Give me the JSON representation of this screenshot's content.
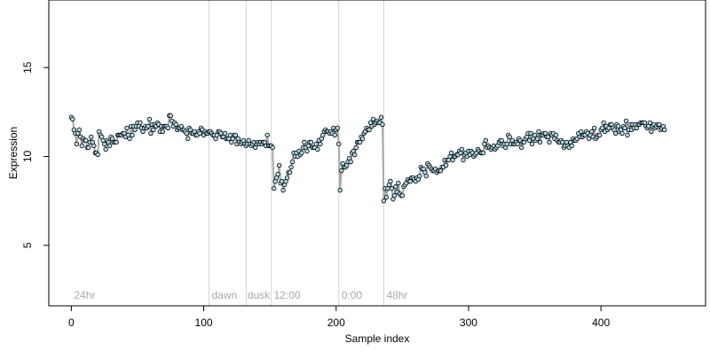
{
  "chart_data": {
    "type": "scatter",
    "title": "",
    "xlabel": "Sample index",
    "ylabel": "Expression",
    "xlim": [
      -17,
      479
    ],
    "ylim": [
      1.6,
      18.8
    ],
    "x_ticks": [
      0,
      100,
      200,
      300,
      400
    ],
    "y_ticks": [
      5,
      10,
      15
    ],
    "grid": false,
    "legend": "none",
    "colors": {
      "point_fill": "#add8e6",
      "point_stroke": "#000000",
      "trend_line": "#a9a9a9",
      "residual_positive": "#ffa500",
      "residual_negative": "#6495ed",
      "vline": "#d3d3d3",
      "annotation_text": "#a9a9a9"
    },
    "vlines": [
      104,
      132,
      151,
      202,
      236
    ],
    "annotations": [
      {
        "x": 2,
        "y": 2,
        "text": "24hr"
      },
      {
        "x": 106,
        "y": 2,
        "text": "dawn"
      },
      {
        "x": 133,
        "y": 2,
        "text": "dusk"
      },
      {
        "x": 153,
        "y": 2,
        "text": "12:00"
      },
      {
        "x": 204,
        "y": 2,
        "text": "0:00"
      },
      {
        "x": 238,
        "y": 2,
        "text": "48hr"
      }
    ],
    "series": [
      {
        "values": [
          12.2,
          12.1,
          11.5,
          11.3,
          10.7,
          11.3,
          11.5,
          11.1,
          10.6,
          11.0,
          10.9,
          10.9,
          10.5,
          10.5,
          10.8,
          11.1,
          10.8,
          10.6,
          10.2,
          10.2,
          10.1,
          11.4,
          11.2,
          11.1,
          10.9,
          10.7,
          10.4,
          10.9,
          10.8,
          10.6,
          11.1,
          11.0,
          10.8,
          10.8,
          10.8,
          11.2,
          11.2,
          11.2,
          11.2,
          11.3,
          11.3,
          11.1,
          11.6,
          11.2,
          11.0,
          11.7,
          11.2,
          11.7,
          11.5,
          11.7,
          11.9,
          11.7,
          11.9,
          11.6,
          11.4,
          11.6,
          11.7,
          11.6,
          11.7,
          12.1,
          11.3,
          11.8,
          11.5,
          11.8,
          11.7,
          11.9,
          11.8,
          11.4,
          11.7,
          11.4,
          11.7,
          11.7,
          11.7,
          11.6,
          12.3,
          12.3,
          12.0,
          11.7,
          11.9,
          11.8,
          11.5,
          11.6,
          11.6,
          11.7,
          11.5,
          11.5,
          11.4,
          11.3,
          11.0,
          11.6,
          11.5,
          11.3,
          11.3,
          11.4,
          11.2,
          11.2,
          11.4,
          11.3,
          11.6,
          11.5,
          11.2,
          11.4,
          11.3,
          11.3,
          11.4,
          11.4,
          11.3,
          11.2,
          11.2,
          11.0,
          11.2,
          11.4,
          11.4,
          11.3,
          11.1,
          11.1,
          11.3,
          11.0,
          11.0,
          11.0,
          11.2,
          10.8,
          11.0,
          11.2,
          11.2,
          10.7,
          11.0,
          10.8,
          10.7,
          10.8,
          10.9,
          10.7,
          10.6,
          10.7,
          10.9,
          10.7,
          10.6,
          10.7,
          10.8,
          10.5,
          10.7,
          10.8,
          10.7,
          10.8,
          10.7,
          10.8,
          10.8,
          10.6,
          11.2,
          10.6,
          10.6,
          10.6,
          10.5,
          8.2,
          8.6,
          8.8,
          9.0,
          9.5,
          8.5,
          8.6,
          8.1,
          8.4,
          8.6,
          8.8,
          9.1,
          9.1,
          9.4,
          9.7,
          10.2,
          10.0,
          10.2,
          10.0,
          10.3,
          10.1,
          10.2,
          10.5,
          10.8,
          10.5,
          10.3,
          10.6,
          10.8,
          10.8,
          10.5,
          10.5,
          10.5,
          10.7,
          10.4,
          10.9,
          10.7,
          11.0,
          11.2,
          11.4,
          11.5,
          11.4,
          11.4,
          11.3,
          11.4,
          11.3,
          11.6,
          11.2,
          11.5,
          11.6,
          10.7,
          8.1,
          9.2,
          9.6,
          9.4,
          9.4,
          9.5,
          9.7,
          9.9,
          9.7,
          10.2,
          10.3,
          10.1,
          10.5,
          10.8,
          10.8,
          10.8,
          11.1,
          11.0,
          11.3,
          11.4,
          11.6,
          11.5,
          11.5,
          11.9,
          11.7,
          12.1,
          11.8,
          11.9,
          12.0,
          11.9,
          11.9,
          12.2,
          11.8,
          7.5,
          8.2,
          7.7,
          8.2,
          8.4,
          8.6,
          8.2,
          7.6,
          7.8,
          8.3,
          8.0,
          8.5,
          7.9,
          7.8,
          7.8,
          8.3,
          8.4,
          8.5,
          8.7,
          8.6,
          8.6,
          8.8,
          8.8,
          8.7,
          8.6,
          8.8,
          8.7,
          8.9,
          9.4,
          9.3,
          9.3,
          9.1,
          8.9,
          9.6,
          9.5,
          9.4,
          9.3,
          9.2,
          9.2,
          9.3,
          9.1,
          9.2,
          9.2,
          9.2,
          9.4,
          9.4,
          9.8,
          9.5,
          9.8,
          9.8,
          10.0,
          10.2,
          9.8,
          10.0,
          10.0,
          10.1,
          10.1,
          10.3,
          10.2,
          10.4,
          9.8,
          10.1,
          10.2,
          10.0,
          10.3,
          10.1,
          10.3,
          10.2,
          10.0,
          10.1,
          10.2,
          10.4,
          10.3,
          10.2,
          10.2,
          10.2,
          10.7,
          10.9,
          10.5,
          10.6,
          10.5,
          10.4,
          10.5,
          10.6,
          10.4,
          10.5,
          10.6,
          10.8,
          10.9,
          10.9,
          10.6,
          10.7,
          10.5,
          10.7,
          11.2,
          11.1,
          10.7,
          10.9,
          10.7,
          10.7,
          10.8,
          10.7,
          11.0,
          10.9,
          10.5,
          10.8,
          10.8,
          11.0,
          11.1,
          11.3,
          10.9,
          11.3,
          10.7,
          11.0,
          11.2,
          10.9,
          11.0,
          11.4,
          10.8,
          11.2,
          11.2,
          11.3,
          11.3,
          11.1,
          11.1,
          10.8,
          11.3,
          11.2,
          11.3,
          11.0,
          11.2,
          10.9,
          10.8,
          10.8,
          10.9,
          10.8,
          10.5,
          10.6,
          10.8,
          10.6,
          10.5,
          10.8,
          10.6,
          11.0,
          10.9,
          10.9,
          11.0,
          11.3,
          11.1,
          11.4,
          11.1,
          11.2,
          11.2,
          11.4,
          11.3,
          11.0,
          11.2,
          11.4,
          11.1,
          11.6,
          11.0,
          11.1,
          11.2,
          11.2,
          11.5,
          11.6,
          11.9,
          11.4,
          11.7,
          11.5,
          11.6,
          11.8,
          11.8,
          11.6,
          11.5,
          11.3,
          11.8,
          11.7,
          11.4,
          11.5,
          11.3,
          11.7,
          11.6,
          12.0,
          11.2,
          11.5,
          11.8,
          11.5,
          11.8,
          11.6,
          11.8,
          11.6,
          11.8,
          11.8,
          11.9,
          11.9,
          11.9,
          11.9,
          11.7,
          11.6,
          11.7,
          11.9,
          11.4,
          11.7,
          11.8,
          11.6,
          11.7,
          11.8,
          11.8,
          11.5,
          11.6,
          11.7,
          11.5
        ],
        "trend": [
          12.2,
          12.1,
          11.5,
          11.3,
          10.7,
          11.3,
          11.5,
          11.1,
          10.6,
          11.0,
          10.9,
          10.9,
          10.5,
          10.5,
          10.8,
          11.1,
          10.8,
          10.6,
          10.2,
          10.2,
          10.1,
          11.4,
          11.2,
          11.1,
          10.9,
          10.7,
          10.4,
          10.9,
          10.8,
          10.6,
          11.1,
          11.0,
          10.8,
          10.8,
          10.8,
          11.2,
          11.2,
          11.2,
          11.2,
          11.3,
          11.3,
          11.1,
          11.6,
          11.2,
          11.0,
          11.7,
          11.2,
          11.7,
          11.5,
          11.7,
          11.9,
          11.7,
          11.9,
          11.6,
          11.4,
          11.6,
          11.7,
          11.6,
          11.7,
          12.1,
          11.3,
          11.8,
          11.5,
          11.8,
          11.7,
          11.9,
          11.8,
          11.4,
          11.7,
          11.4,
          11.7,
          11.7,
          11.7,
          11.6,
          12.3,
          12.3,
          12.0,
          11.7,
          11.9,
          11.8,
          11.5,
          11.6,
          11.6,
          11.7,
          11.5,
          11.5,
          11.4,
          11.3,
          11.0,
          11.6,
          11.5,
          11.3,
          11.3,
          11.4,
          11.2,
          11.2,
          11.4,
          11.3,
          11.6,
          11.5,
          11.2,
          11.4,
          11.3,
          11.3,
          11.4,
          11.4,
          11.3,
          11.2,
          11.2,
          11.0,
          11.2,
          11.4,
          11.4,
          11.3,
          11.1,
          11.1,
          11.3,
          11.0,
          11.0,
          11.0,
          11.2,
          10.8,
          11.0,
          11.2,
          11.2,
          10.7,
          11.0,
          10.8,
          10.7,
          10.8,
          10.9,
          10.7,
          10.6,
          10.7,
          10.9,
          10.7,
          10.6,
          10.7,
          10.8,
          10.5,
          10.7,
          10.8,
          10.7,
          10.8,
          10.7,
          10.8,
          10.8,
          10.6,
          11.2,
          10.6,
          10.6,
          10.6,
          10.5,
          8.2,
          8.6,
          8.8,
          9.0,
          9.5,
          8.5,
          8.6,
          8.1,
          8.4,
          8.6,
          8.8,
          9.1,
          9.1,
          9.4,
          9.7,
          10.2,
          10.0,
          10.2,
          10.0,
          10.3,
          10.1,
          10.2,
          10.5,
          10.8,
          10.5,
          10.3,
          10.6,
          10.8,
          10.8,
          10.5,
          10.5,
          10.5,
          10.7,
          10.4,
          10.9,
          10.7,
          11.0,
          11.2,
          11.4,
          11.5,
          11.4,
          11.4,
          11.3,
          11.4,
          11.3,
          11.6,
          11.2,
          11.5,
          11.6,
          10.7,
          8.1,
          9.2,
          9.6,
          9.4,
          9.4,
          9.5,
          9.7,
          9.9,
          9.7,
          10.2,
          10.3,
          10.1,
          10.5,
          10.8,
          10.8,
          10.8,
          11.1,
          11.0,
          11.3,
          11.4,
          11.6,
          11.5,
          11.5,
          11.9,
          11.7,
          12.1,
          11.8,
          11.9,
          12.0,
          11.9,
          11.9,
          12.2,
          11.8,
          7.5,
          8.2,
          7.7,
          8.2,
          8.4,
          8.6,
          8.2,
          7.6,
          7.8,
          8.3,
          8.0,
          8.5,
          7.9,
          7.8,
          7.8,
          8.3,
          8.4,
          8.5,
          8.7,
          8.6,
          8.6,
          8.8,
          8.8,
          8.7,
          8.6,
          8.8,
          8.7,
          8.9,
          9.4,
          9.3,
          9.3,
          9.1,
          8.9,
          9.6,
          9.5,
          9.4,
          9.3,
          9.2,
          9.2,
          9.3,
          9.1,
          9.2,
          9.2,
          9.2,
          9.4,
          9.4,
          9.8,
          9.5,
          9.8,
          9.8,
          10.0,
          10.2,
          9.8,
          10.0,
          10.0,
          10.1,
          10.1,
          10.3,
          10.2,
          10.4,
          9.8,
          10.1,
          10.2,
          10.0,
          10.3,
          10.1,
          10.3,
          10.2,
          10.0,
          10.1,
          10.2,
          10.4,
          10.3,
          10.2,
          10.2,
          10.2,
          10.7,
          10.9,
          10.5,
          10.6,
          10.5,
          10.4,
          10.5,
          10.6,
          10.4,
          10.5,
          10.6,
          10.8,
          10.9,
          10.9,
          10.6,
          10.7,
          10.5,
          10.7,
          11.2,
          11.1,
          10.7,
          10.9,
          10.7,
          10.7,
          10.8,
          10.7,
          11.0,
          10.9,
          10.5,
          10.8,
          10.8,
          11.0,
          11.1,
          11.3,
          10.9,
          11.3,
          10.7,
          11.0,
          11.2,
          10.9,
          11.0,
          11.4,
          10.8,
          11.2,
          11.2,
          11.3,
          11.3,
          11.1,
          11.1,
          10.8,
          11.3,
          11.2,
          11.3,
          11.0,
          11.2,
          10.9,
          10.8,
          10.8,
          10.9,
          10.8,
          10.5,
          10.6,
          10.8,
          10.6,
          10.5,
          10.8,
          10.6,
          11.0,
          10.9,
          10.9,
          11.0,
          11.3,
          11.1,
          11.4,
          11.1,
          11.2,
          11.2,
          11.4,
          11.3,
          11.0,
          11.2,
          11.4,
          11.1,
          11.6,
          11.0,
          11.1,
          11.2,
          11.2,
          11.5,
          11.6,
          11.9,
          11.4,
          11.7,
          11.5,
          11.6,
          11.8,
          11.8,
          11.6,
          11.5,
          11.3,
          11.8,
          11.7,
          11.4,
          11.5,
          11.3,
          11.7,
          11.6,
          12.0,
          11.2,
          11.5,
          11.8,
          11.5,
          11.8,
          11.6,
          11.8,
          11.6,
          11.8,
          11.8,
          11.9,
          11.9,
          11.9,
          11.9,
          11.7,
          11.6,
          11.7,
          11.9,
          11.4,
          11.7,
          11.8,
          11.6,
          11.7,
          11.8,
          11.8,
          11.5,
          11.6,
          11.7,
          11.5
        ]
      }
    ]
  }
}
